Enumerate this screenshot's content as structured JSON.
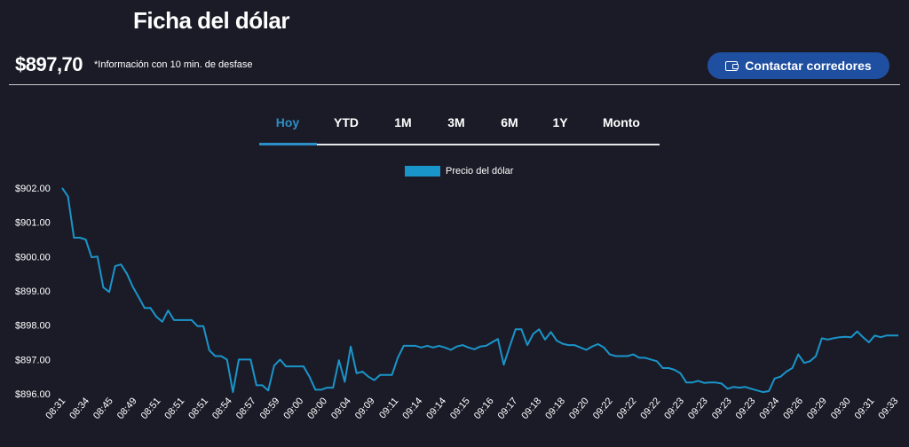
{
  "header": {
    "title": "Ficha del dólar",
    "price": "$897,70",
    "note": "*Información con 10 min. de desfase",
    "contact_label": "Contactar corredores"
  },
  "tabs": [
    {
      "label": "Hoy",
      "active": true
    },
    {
      "label": "YTD",
      "active": false
    },
    {
      "label": "1M",
      "active": false
    },
    {
      "label": "3M",
      "active": false
    },
    {
      "label": "6M",
      "active": false
    },
    {
      "label": "1Y",
      "active": false
    },
    {
      "label": "Monto",
      "active": false
    }
  ],
  "colors": {
    "accent": "#2a8fc7",
    "line": "#1a95c9",
    "button": "#1f4fa0",
    "background": "#1b1b28"
  },
  "chart_data": {
    "type": "line",
    "legend": "Precio del dólar",
    "legend_position": "top-center",
    "grid": false,
    "ylim": [
      895.95,
      902.05
    ],
    "y_ticks": [
      "$902.00",
      "$901.00",
      "$900.00",
      "$899.00",
      "$898.00",
      "$897.00",
      "$896.00"
    ],
    "x_ticks": [
      "08:31",
      "08:34",
      "08:45",
      "08:49",
      "08:51",
      "08:51",
      "08:51",
      "08:54",
      "08:57",
      "08:59",
      "09:00",
      "09:00",
      "09:04",
      "09:09",
      "09:11",
      "09:14",
      "09:14",
      "09:15",
      "09:16",
      "09:17",
      "09:18",
      "09:18",
      "09:20",
      "09:22",
      "09:22",
      "09:22",
      "09:23",
      "09:23",
      "09:23",
      "09:23",
      "09:24",
      "09:26",
      "09:29",
      "09:30",
      "09:31",
      "09:33"
    ],
    "series": [
      {
        "name": "Precio del dólar",
        "values": [
          902.0,
          901.75,
          900.55,
          900.55,
          900.5,
          899.98,
          900.0,
          899.1,
          898.97,
          899.72,
          899.77,
          899.5,
          899.12,
          898.82,
          898.5,
          898.5,
          898.25,
          898.1,
          898.43,
          898.15,
          898.15,
          898.15,
          898.15,
          897.97,
          897.97,
          897.27,
          897.1,
          897.1,
          897.0,
          896.05,
          897.0,
          897.0,
          897.0,
          896.25,
          896.25,
          896.1,
          896.82,
          897.0,
          896.8,
          896.8,
          896.8,
          896.8,
          896.5,
          896.12,
          896.12,
          896.18,
          896.18,
          896.98,
          896.35,
          897.38,
          896.6,
          896.65,
          896.5,
          896.4,
          896.55,
          896.55,
          896.55,
          897.05,
          897.4,
          897.4,
          897.4,
          897.35,
          897.4,
          897.35,
          897.4,
          897.35,
          897.28,
          897.38,
          897.42,
          897.35,
          897.3,
          897.38,
          897.4,
          897.5,
          897.6,
          896.85,
          897.38,
          897.88,
          897.88,
          897.42,
          897.75,
          897.88,
          897.58,
          897.8,
          897.55,
          897.46,
          897.42,
          897.42,
          897.35,
          897.28,
          897.38,
          897.45,
          897.35,
          897.15,
          897.1,
          897.1,
          897.1,
          897.15,
          897.05,
          897.05,
          897.0,
          896.95,
          896.75,
          896.75,
          896.7,
          896.6,
          896.33,
          896.33,
          896.38,
          896.32,
          896.33,
          896.33,
          896.3,
          896.15,
          896.2,
          896.18,
          896.2,
          896.15,
          896.1,
          896.05,
          896.08,
          896.45,
          896.5,
          896.65,
          896.75,
          897.15,
          896.9,
          896.95,
          897.1,
          897.62,
          897.58,
          897.62,
          897.65,
          897.66,
          897.65,
          897.82,
          897.65,
          897.5,
          897.7,
          897.65,
          897.7,
          897.7,
          897.7
        ]
      }
    ]
  }
}
